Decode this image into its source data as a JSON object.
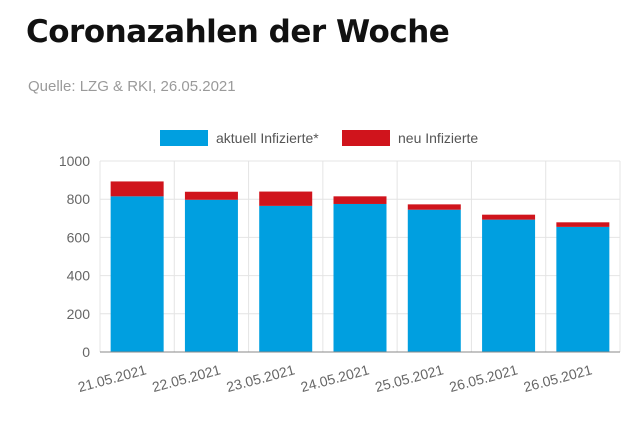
{
  "header": {
    "title": "Coronazahlen der Woche",
    "subtitle": "Quelle: LZG & RKI, 26.05.2021"
  },
  "colors": {
    "aktuell": "#009fe0",
    "neu": "#d0141c",
    "grid": "#e4e4e4",
    "axis": "#888888",
    "text": "#666666"
  },
  "chart_data": {
    "type": "bar",
    "stacked": true,
    "categories": [
      "21.05.2021",
      "22.05.2021",
      "23.05.2021",
      "24.05.2021",
      "25.05.2021",
      "26.05.2021",
      "26.05.2021"
    ],
    "series": [
      {
        "name": "aktuell Infizierte*",
        "values": [
          815,
          797,
          765,
          775,
          745,
          693,
          655
        ]
      },
      {
        "name": "neu Infizierte",
        "values": [
          78,
          42,
          75,
          40,
          28,
          26,
          24
        ]
      }
    ],
    "ylim": [
      0,
      1000
    ],
    "yticks": [
      0,
      200,
      400,
      600,
      800,
      1000
    ],
    "legend_position": "top",
    "grid": true
  }
}
